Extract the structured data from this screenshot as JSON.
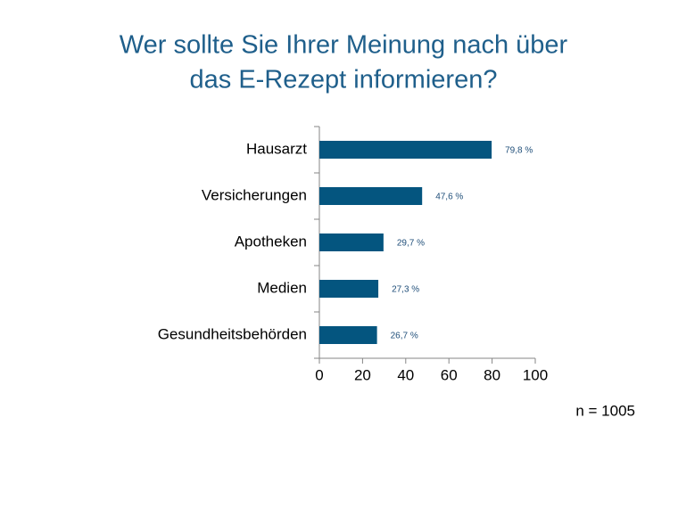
{
  "chart_data": {
    "type": "bar",
    "orientation": "horizontal",
    "title": [
      "Wer sollte Sie Ihrer Meinung nach über",
      "das E-Rezept informieren?"
    ],
    "categories": [
      "Hausarzt",
      "Versicherungen",
      "Apotheken",
      "Medien",
      "Gesundheitsbehörden"
    ],
    "values": [
      79.8,
      47.6,
      29.7,
      27.3,
      26.7
    ],
    "value_labels": [
      "79,8 %",
      "47,6 %",
      "29,7 %",
      "27,3 %",
      "26,7 %"
    ],
    "color": "#04557f",
    "xlim": [
      0,
      100
    ],
    "xticks": [
      0,
      20,
      40,
      60,
      80,
      100
    ],
    "annotation": "n = 1005"
  }
}
